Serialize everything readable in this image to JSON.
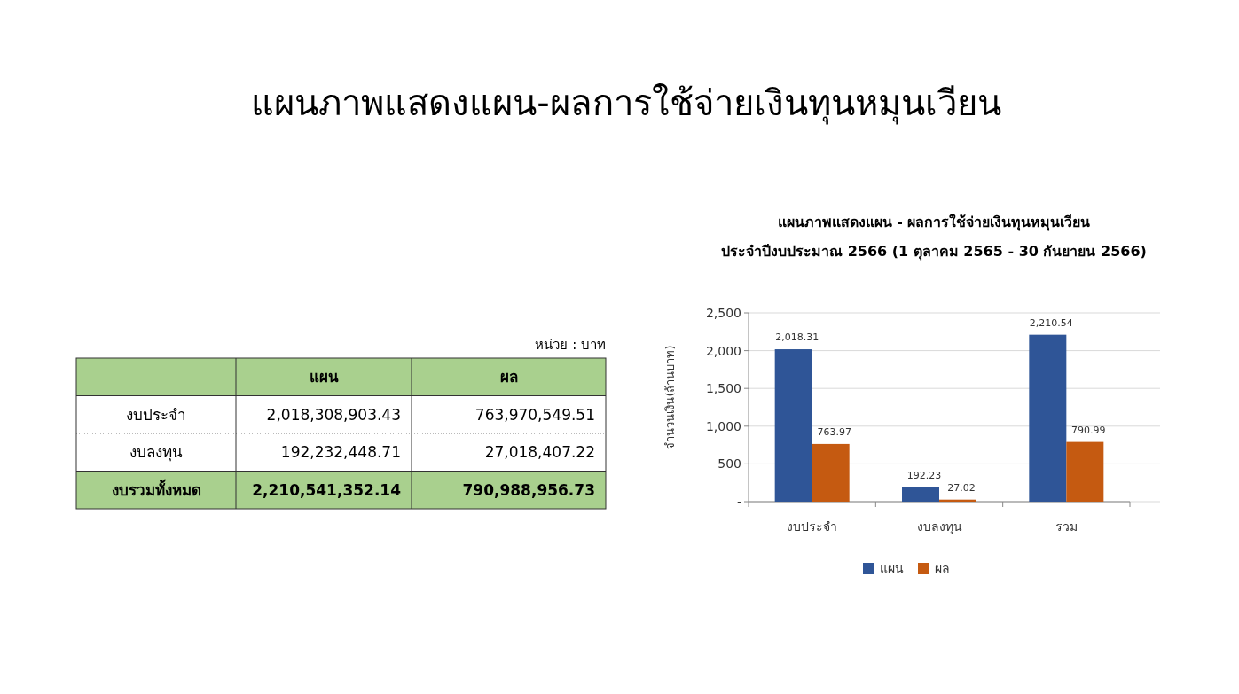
{
  "chart_data": [
    {
      "type": "other",
      "title": "แผนภาพแสดงแผน-ผลการใช้จ่ายเงินทุนหมุนเวียน",
      "annotations": [
        "หน่วย : บาท"
      ],
      "categories": [
        "งบประจำ",
        "งบลงทุน",
        "งบรวมทั้งหมด"
      ],
      "series": [
        {
          "name": "แผน",
          "values": [
            2018308903.43,
            192232448.71,
            2210541352.14
          ],
          "value_labels": [
            "2,018,308,903.43",
            "192,232,448.71",
            "2,210,541,352.14"
          ]
        },
        {
          "name": "ผล",
          "values": [
            763970549.51,
            27018407.22,
            790988956.73
          ],
          "value_labels": [
            "763,970,549.51",
            "27,018,407.22",
            "790,988,956.73"
          ]
        }
      ]
    },
    {
      "type": "bar",
      "title": "แผนภาพแสดงแผน - ผลการใช้จ่ายเงินทุนหมุนเวียน",
      "subtitle": "ประจำปีงบประมาณ 2566 (1 ตุลาคม 2565 - 30 กันยายน 2566)",
      "ylabel": "จำนวนเงิน(ล้านบาท)",
      "categories": [
        "งบประจำ",
        "งบลงทุน",
        "รวม"
      ],
      "series": [
        {
          "name": "แผน",
          "color": "#2f5597",
          "values": [
            2018.31,
            192.23,
            2210.54
          ],
          "value_labels": [
            "2,018.31",
            "192.23",
            "2,210.54"
          ]
        },
        {
          "name": "ผล",
          "color": "#c55a11",
          "values": [
            763.97,
            27.02,
            790.99
          ],
          "value_labels": [
            "763.97",
            "27.02",
            "790.99"
          ]
        }
      ],
      "ylim": [
        0,
        2500
      ],
      "yticks": [
        {
          "value": 0,
          "label": "-"
        },
        {
          "value": 500,
          "label": "500"
        },
        {
          "value": 1000,
          "label": "1,000"
        },
        {
          "value": 1500,
          "label": "1,500"
        },
        {
          "value": 2000,
          "label": "2,000"
        },
        {
          "value": 2500,
          "label": "2,500"
        }
      ],
      "grid": "y",
      "legend": "bottom"
    }
  ]
}
